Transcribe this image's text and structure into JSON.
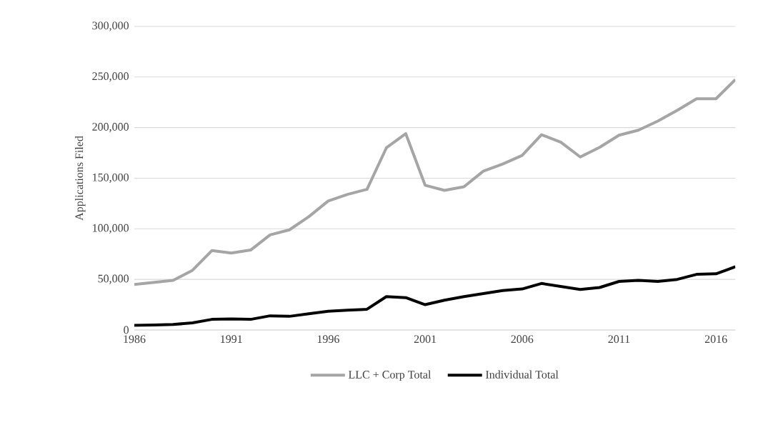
{
  "chart_data": {
    "type": "line",
    "ylabel": "Applications Filed",
    "x": [
      1986,
      1987,
      1988,
      1989,
      1990,
      1991,
      1992,
      1993,
      1994,
      1995,
      1996,
      1997,
      1998,
      1999,
      2000,
      2001,
      2002,
      2003,
      2004,
      2005,
      2006,
      2007,
      2008,
      2009,
      2010,
      2011,
      2012,
      2013,
      2014,
      2015,
      2016,
      2017
    ],
    "series": [
      {
        "name": "LLC + Corp Total",
        "color": "#a5a5a5",
        "values": [
          45000,
          47000,
          49000,
          59000,
          78500,
          76000,
          79000,
          94000,
          99000,
          112000,
          127500,
          134000,
          139000,
          180000,
          194000,
          143000,
          138000,
          141500,
          157000,
          164000,
          172500,
          193000,
          185500,
          171000,
          180500,
          192500,
          197500,
          206500,
          217000,
          228500,
          228500,
          247500
        ]
      },
      {
        "name": "Individual Total",
        "color": "#000000",
        "values": [
          4500,
          5000,
          5500,
          7000,
          10500,
          11000,
          10500,
          14000,
          13500,
          16000,
          18500,
          19500,
          20500,
          33000,
          32000,
          25000,
          29500,
          33000,
          36000,
          39000,
          40500,
          46000,
          43000,
          40000,
          42000,
          48000,
          49000,
          48000,
          50000,
          55000,
          55500,
          62500
        ]
      }
    ],
    "xlim": [
      1986,
      2017
    ],
    "xticks": [
      1986,
      1991,
      1996,
      2001,
      2006,
      2011,
      2016
    ],
    "ylim": [
      0,
      300000
    ],
    "yticks": [
      0,
      {
        "value": 50000,
        "label": "50,000"
      },
      {
        "value": 100000,
        "label": "100,000"
      },
      {
        "value": 150000,
        "label": "150,000"
      },
      {
        "value": 200000,
        "label": "200,000"
      },
      {
        "value": 250000,
        "label": "250,000"
      },
      {
        "value": 300000,
        "label": "300,000"
      }
    ],
    "grid": "y",
    "legend": "bottom"
  }
}
